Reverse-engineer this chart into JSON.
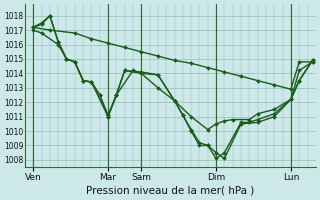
{
  "background_color": "#cce8e8",
  "grid_color": "#99bbbb",
  "line_color": "#1a5c1a",
  "marker_color": "#1a5c1a",
  "xlabel_text": "Pression niveau de la mer( hPa )",
  "yticks": [
    1008,
    1009,
    1010,
    1011,
    1012,
    1013,
    1014,
    1015,
    1016,
    1017,
    1018
  ],
  "ylim": [
    1007.5,
    1018.8
  ],
  "day_labels": [
    "Ven",
    "Mar",
    "Sam",
    "Dim",
    "Lun"
  ],
  "day_positions": [
    0.0,
    4.5,
    6.5,
    11.0,
    15.5
  ],
  "vline_positions": [
    0.0,
    4.5,
    6.5,
    11.0,
    15.5
  ],
  "xlim": [
    -0.5,
    17.0
  ],
  "lines": [
    {
      "x": [
        0.0,
        1.0,
        2.5,
        3.5,
        4.5,
        5.5,
        6.5,
        7.5,
        8.5,
        9.5,
        10.5,
        11.5,
        12.5,
        13.5,
        14.5,
        15.5,
        16.0,
        16.8
      ],
      "y": [
        1017.2,
        1017.0,
        1016.8,
        1016.4,
        1016.1,
        1015.8,
        1015.5,
        1015.2,
        1014.9,
        1014.7,
        1014.4,
        1014.1,
        1013.8,
        1013.5,
        1013.2,
        1012.9,
        1014.8,
        1014.8
      ],
      "linewidth": 1.0
    },
    {
      "x": [
        0.0,
        0.5,
        1.5,
        2.0,
        2.5,
        3.0,
        3.5,
        4.5,
        5.0,
        6.0,
        6.5,
        7.5,
        8.5,
        9.5,
        10.5,
        11.0,
        11.5,
        12.0,
        13.0,
        13.5,
        14.5,
        15.5,
        16.0,
        16.8
      ],
      "y": [
        1017.0,
        1016.8,
        1016.0,
        1015.0,
        1014.8,
        1013.5,
        1013.4,
        1011.0,
        1012.5,
        1014.2,
        1014.0,
        1013.0,
        1012.1,
        1011.0,
        1010.1,
        1010.5,
        1010.7,
        1010.8,
        1010.8,
        1011.2,
        1011.5,
        1012.2,
        1014.2,
        1014.8
      ],
      "linewidth": 1.0
    },
    {
      "x": [
        0.0,
        0.5,
        1.0,
        1.5,
        2.0,
        2.5,
        3.0,
        3.5,
        4.0,
        4.5,
        5.0,
        5.5,
        6.5,
        7.5,
        8.5,
        9.0,
        9.5,
        10.0,
        10.5,
        11.0,
        11.5,
        12.5,
        13.5,
        14.5,
        15.5,
        16.0,
        16.8
      ],
      "y": [
        1017.2,
        1017.5,
        1018.0,
        1016.2,
        1015.0,
        1014.8,
        1013.5,
        1013.4,
        1012.5,
        1011.0,
        1012.5,
        1014.2,
        1014.0,
        1013.9,
        1012.1,
        1011.1,
        1010.0,
        1009.0,
        1009.0,
        1008.5,
        1008.1,
        1010.5,
        1010.6,
        1011.0,
        1012.2,
        1013.5,
        1014.9
      ],
      "linewidth": 1.0
    },
    {
      "x": [
        0.0,
        0.5,
        1.0,
        1.5,
        2.0,
        2.5,
        3.0,
        3.5,
        4.0,
        4.5,
        5.0,
        5.5,
        6.5,
        7.5,
        8.5,
        9.0,
        9.5,
        10.0,
        10.5,
        11.0,
        11.5,
        12.5,
        13.0,
        13.5,
        14.5,
        15.5,
        16.0,
        16.8
      ],
      "y": [
        1017.2,
        1017.4,
        1018.0,
        1016.2,
        1015.0,
        1014.8,
        1013.5,
        1013.4,
        1012.5,
        1011.1,
        1012.5,
        1014.2,
        1014.1,
        1013.9,
        1012.1,
        1011.1,
        1010.1,
        1009.2,
        1009.0,
        1008.1,
        1008.5,
        1010.6,
        1010.6,
        1010.8,
        1011.2,
        1012.2,
        1013.5,
        1014.9
      ],
      "linewidth": 1.0
    }
  ]
}
